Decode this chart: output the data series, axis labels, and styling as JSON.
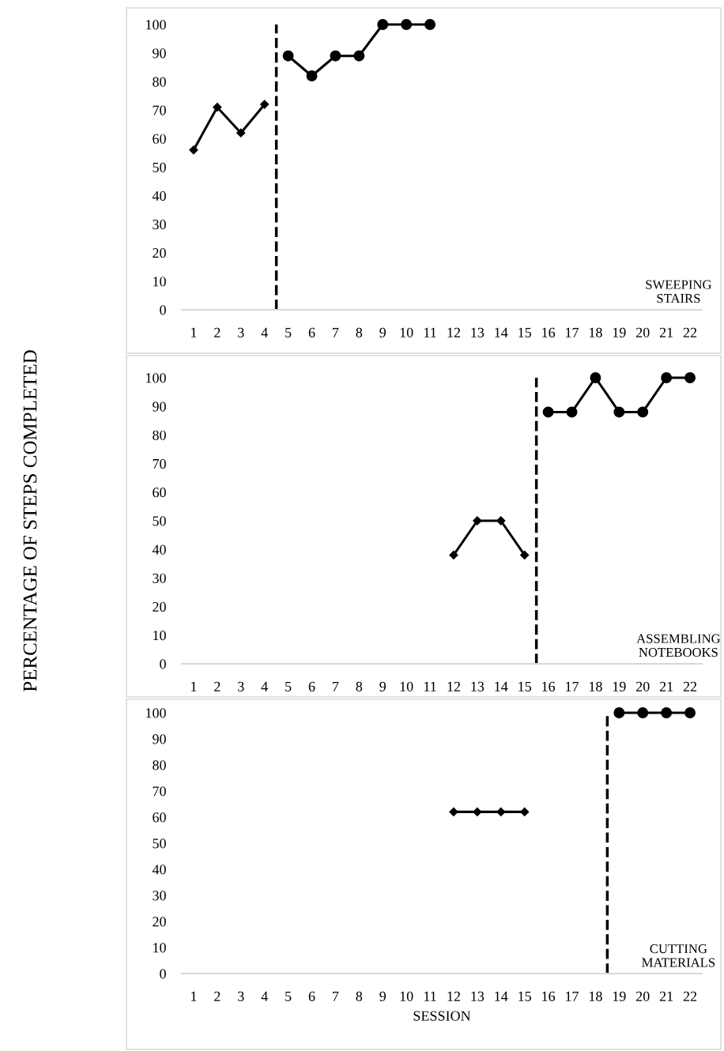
{
  "chart_data": [
    {
      "type": "line",
      "series": [
        {
          "x": [
            1,
            2,
            3,
            4
          ],
          "values": [
            56,
            71,
            62,
            72
          ],
          "color": "#000000",
          "marker": "diamond"
        },
        {
          "x": [
            5,
            6,
            7,
            8,
            9,
            10,
            11
          ],
          "values": [
            89,
            82,
            89,
            89,
            100,
            100,
            100
          ],
          "color": "#000000",
          "marker": "circle"
        }
      ],
      "xlim": [
        0.5,
        22.5
      ],
      "xticks": [
        1,
        2,
        3,
        4,
        5,
        6,
        7,
        8,
        9,
        10,
        11,
        12,
        13,
        14,
        15,
        16,
        17,
        18,
        19,
        20,
        21,
        22
      ],
      "ylim": [
        0,
        100
      ],
      "yticks": [
        0,
        10,
        20,
        30,
        40,
        50,
        60,
        70,
        80,
        90,
        100
      ],
      "ref_lines": [
        {
          "axis": "x",
          "value": 4.5,
          "color": "#000000",
          "line_style": "dashed"
        }
      ],
      "annotations": [
        "SWEEPING\nSTAIRS"
      ],
      "grid": false,
      "line_style": "solid"
    },
    {
      "type": "line",
      "series": [
        {
          "x": [
            12,
            13,
            14,
            15
          ],
          "values": [
            38,
            50,
            50,
            38
          ],
          "color": "#000000",
          "marker": "diamond"
        },
        {
          "x": [
            16,
            17,
            18,
            19,
            20,
            21,
            22
          ],
          "values": [
            88,
            88,
            100,
            88,
            88,
            100,
            100
          ],
          "color": "#000000",
          "marker": "circle"
        }
      ],
      "xlim": [
        0.5,
        22.5
      ],
      "xticks": [
        1,
        2,
        3,
        4,
        5,
        6,
        7,
        8,
        9,
        10,
        11,
        12,
        13,
        14,
        15,
        16,
        17,
        18,
        19,
        20,
        21,
        22
      ],
      "ylim": [
        0,
        100
      ],
      "yticks": [
        0,
        10,
        20,
        30,
        40,
        50,
        60,
        70,
        80,
        90,
        100
      ],
      "ylabel": "PERCENTAGE OF STEPS COMPLETED",
      "ref_lines": [
        {
          "axis": "x",
          "value": 15.5,
          "color": "#000000",
          "line_style": "dashed"
        }
      ],
      "annotations": [
        "ASSEMBLING\nNOTEBOOKS"
      ],
      "grid": false,
      "line_style": "solid"
    },
    {
      "type": "line",
      "series": [
        {
          "x": [
            12,
            13,
            14,
            15
          ],
          "values": [
            62,
            62,
            62,
            62
          ],
          "color": "#000000",
          "marker": "diamond"
        },
        {
          "x": [
            19,
            20,
            21,
            22
          ],
          "values": [
            100,
            100,
            100,
            100
          ],
          "color": "#000000",
          "marker": "circle"
        }
      ],
      "xlim": [
        0.5,
        22.5
      ],
      "xticks": [
        1,
        2,
        3,
        4,
        5,
        6,
        7,
        8,
        9,
        10,
        11,
        12,
        13,
        14,
        15,
        16,
        17,
        18,
        19,
        20,
        21,
        22
      ],
      "ylim": [
        0,
        100
      ],
      "yticks": [
        0,
        10,
        20,
        30,
        40,
        50,
        60,
        70,
        80,
        90,
        100
      ],
      "xlabel": "SESSION",
      "ref_lines": [
        {
          "axis": "x",
          "value": 18.5,
          "color": "#000000",
          "line_style": "dashed"
        }
      ],
      "annotations": [
        "CUTTING\nMATERIALS"
      ],
      "grid": false,
      "line_style": "solid"
    }
  ]
}
